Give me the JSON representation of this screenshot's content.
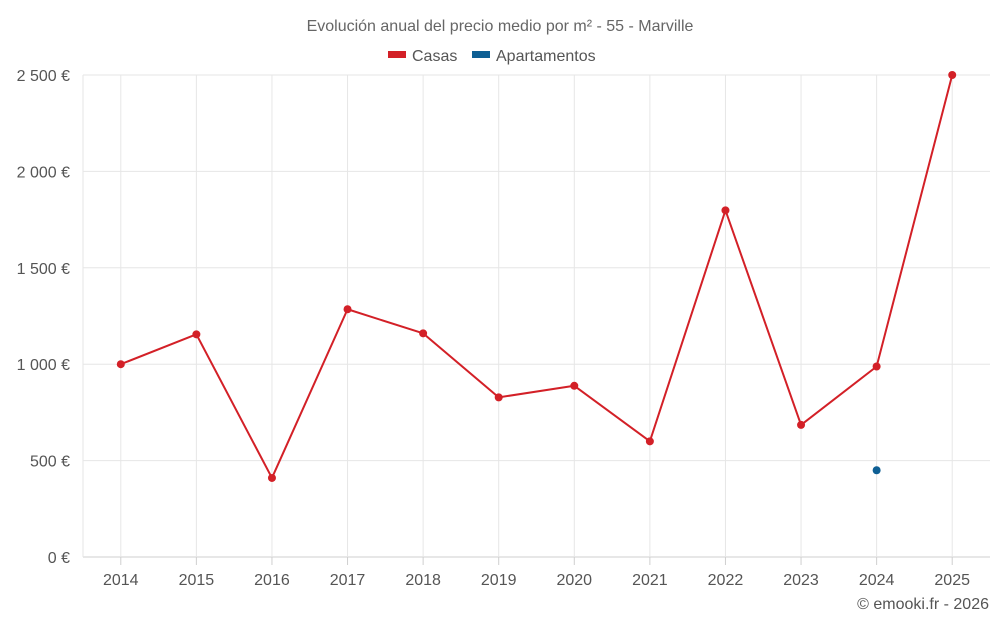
{
  "chart_data": {
    "type": "line",
    "title": "Evolución anual del precio medio por m² - 55 - Marville",
    "categories": [
      "2014",
      "2015",
      "2016",
      "2017",
      "2018",
      "2019",
      "2020",
      "2021",
      "2022",
      "2023",
      "2024",
      "2025"
    ],
    "series": [
      {
        "name": "Casas",
        "color": "#d32027",
        "values": [
          1000,
          1155,
          410,
          1285,
          1160,
          828,
          888,
          600,
          1798,
          685,
          988,
          2500
        ]
      },
      {
        "name": "Apartamentos",
        "color": "#0e5f94",
        "values": [
          null,
          null,
          null,
          null,
          null,
          null,
          null,
          null,
          null,
          null,
          450,
          null
        ]
      }
    ],
    "ylim": [
      0,
      2500
    ],
    "yticks": [
      0,
      500,
      1000,
      1500,
      2000,
      2500
    ],
    "ytick_labels": [
      "0 €",
      "500 €",
      "1 000 €",
      "1 500 €",
      "2 000 €",
      "2 500 €"
    ],
    "xlabel": "",
    "ylabel": "",
    "grid": true,
    "legend_position": "top-center"
  },
  "credit": "© emooki.fr - 2026",
  "colors": {
    "grid": "#e6e6e6",
    "axis_text": "#555555",
    "title_text": "#666666"
  }
}
